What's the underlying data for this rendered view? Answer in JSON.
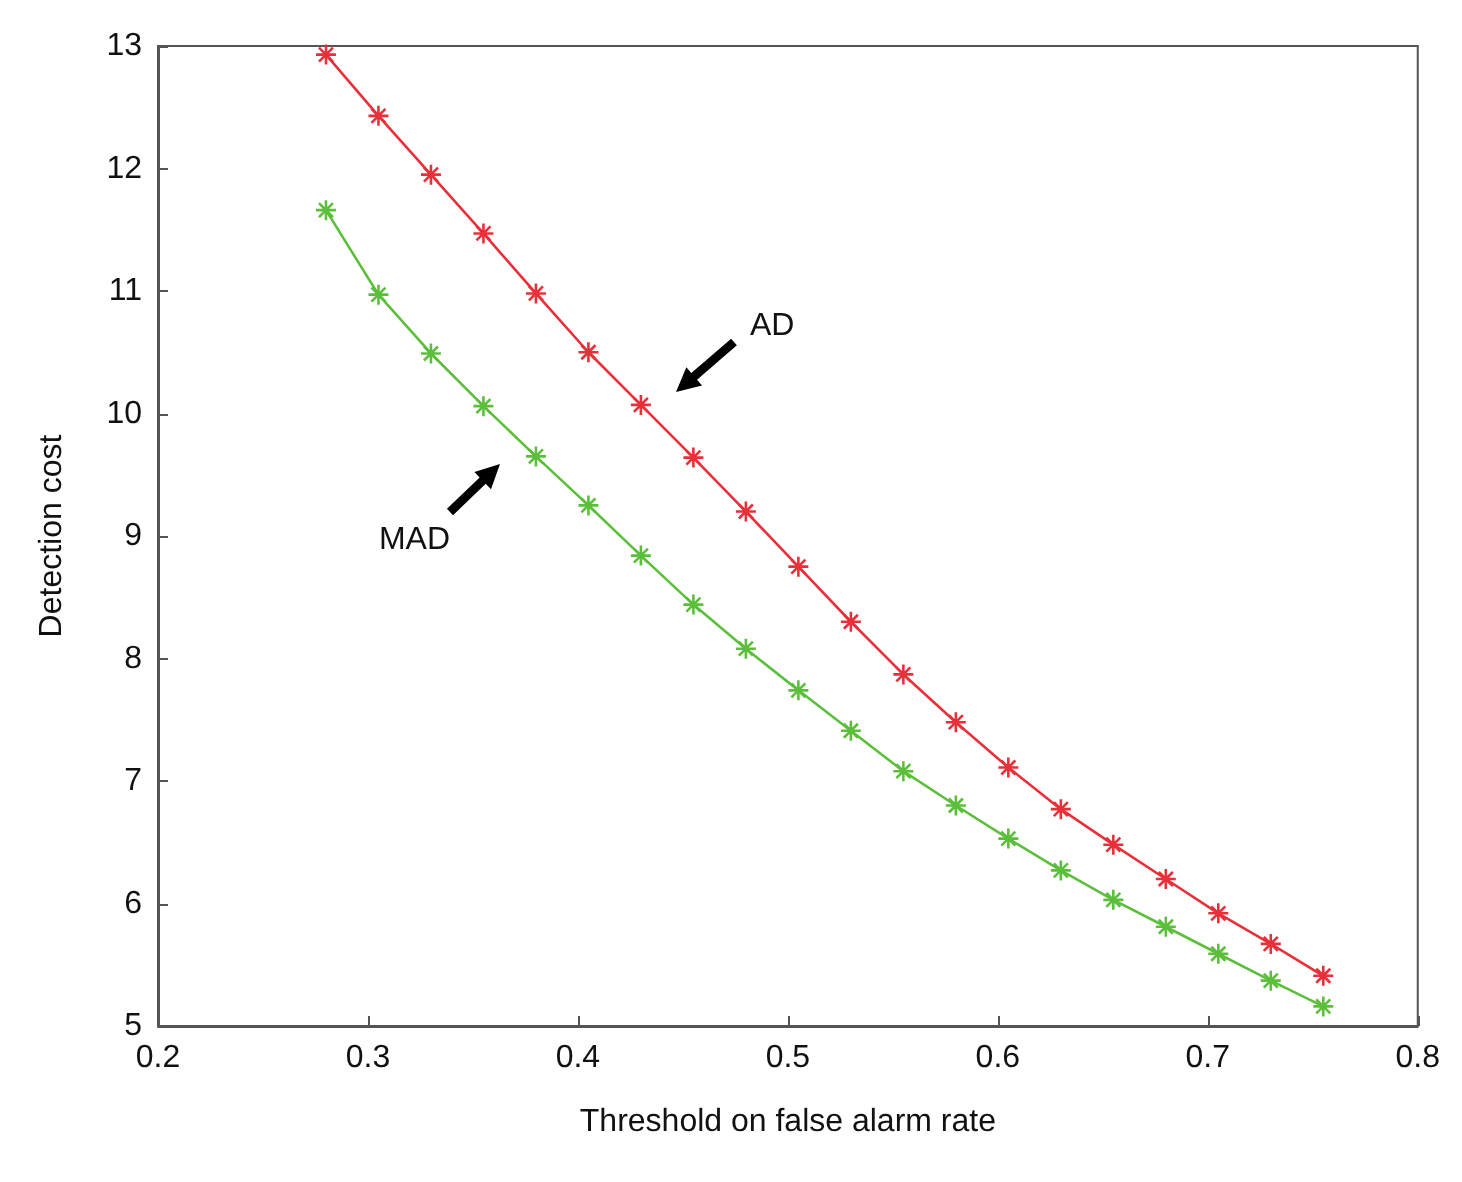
{
  "chart_data": {
    "type": "line",
    "xlabel": "Threshold on false alarm rate",
    "ylabel": "Detection cost",
    "x": [
      0.28,
      0.305,
      0.33,
      0.355,
      0.38,
      0.405,
      0.43,
      0.455,
      0.48,
      0.505,
      0.53,
      0.555,
      0.58,
      0.605,
      0.63,
      0.655,
      0.68,
      0.705,
      0.73,
      0.755
    ],
    "series": [
      {
        "color": "#e8303a",
        "values": [
          12.93,
          12.43,
          11.95,
          11.47,
          10.98,
          10.5,
          10.07,
          9.64,
          9.2,
          8.75,
          8.3,
          7.87,
          7.48,
          7.11,
          6.77,
          6.48,
          6.2,
          5.92,
          5.67,
          5.41
        ]
      },
      {
        "color": "#5cbf3c",
        "values": [
          11.66,
          10.97,
          10.49,
          10.06,
          9.65,
          9.25,
          8.84,
          8.44,
          8.08,
          7.74,
          7.41,
          7.08,
          6.8,
          6.53,
          6.27,
          6.03,
          5.81,
          5.59,
          5.37,
          5.16
        ]
      }
    ],
    "annotations": [
      "AD",
      "MAD"
    ],
    "xlim": [
      0.2,
      0.8
    ],
    "xticks": [
      0.2,
      0.3,
      0.4,
      0.5,
      0.6,
      0.7,
      0.8
    ],
    "ylim": [
      5,
      13
    ],
    "yticks": [
      5,
      6,
      7,
      8,
      9,
      10,
      11,
      12,
      13
    ],
    "grid": false,
    "marker": "cross",
    "line_style": "solid"
  }
}
